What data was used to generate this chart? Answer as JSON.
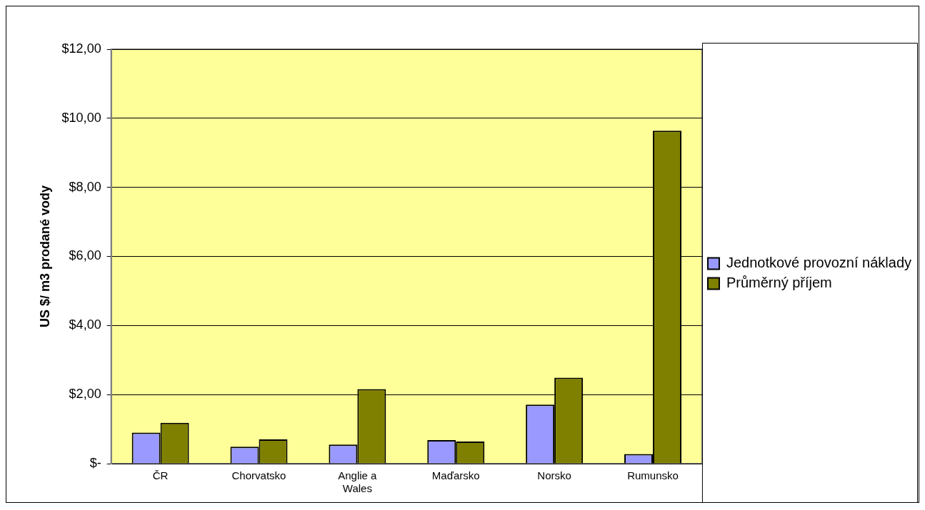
{
  "chart_data": {
    "type": "bar",
    "ylabel": "US $/ m3 prodané vody",
    "categories": [
      "ČR",
      "Chorvatsko",
      "Anglie a Wales",
      "Maďarsko",
      "Norsko",
      "Rumunsko"
    ],
    "series": [
      {
        "name": "Jednotkové provozní náklady",
        "color": "#9999ff",
        "values": [
          0.9,
          0.49,
          0.55,
          0.68,
          1.71,
          0.28
        ]
      },
      {
        "name": "Průměrný příjem",
        "color": "#808000",
        "values": [
          1.18,
          0.7,
          2.16,
          0.64,
          2.49,
          9.64
        ]
      }
    ],
    "ylim": [
      0,
      12
    ],
    "yticks": [
      {
        "value": 0,
        "label": "$-"
      },
      {
        "value": 2,
        "label": "$2,00"
      },
      {
        "value": 4,
        "label": "$4,00"
      },
      {
        "value": 6,
        "label": "$6,00"
      },
      {
        "value": 8,
        "label": "$8,00"
      },
      {
        "value": 10,
        "label": "$10,00"
      },
      {
        "value": 12,
        "label": "$12,00"
      }
    ],
    "grid": "y",
    "legend": "right"
  }
}
